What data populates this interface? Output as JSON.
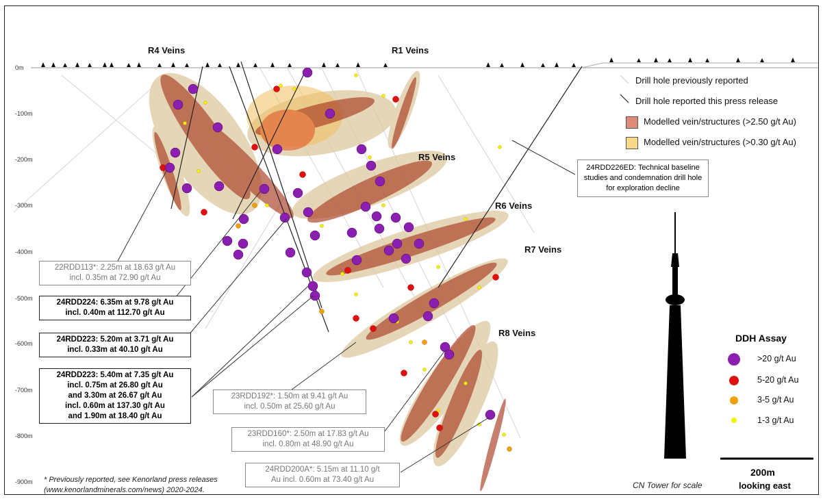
{
  "depth_labels": [
    "0m",
    "-100m",
    "-200m",
    "-300m",
    "-400m",
    "-500m",
    "-600m",
    "-700m",
    "-800m",
    "-900m"
  ],
  "veins": {
    "r4": "R4 Veins",
    "r1": "R1 Veins",
    "r5": "R5 Veins",
    "r6": "R6 Veins",
    "r7": "R7 Veins",
    "r8": "R8 Veins"
  },
  "legend": {
    "prev_hole": "Drill hole previously reported",
    "this_hole": "Drill hole reported this press release",
    "vein_high": "Modelled vein/structures (>2.50 g/t Au)",
    "vein_low": "Modelled vein/structures (>0.30 g/t Au)",
    "color_high": "#e08a7a",
    "color_low": "#f7d98a"
  },
  "callouts": {
    "c1": [
      "22RDD113*: 2.25m at 18.63 g/t Au",
      "incl. 0.35m at 72.90 g/t Au"
    ],
    "c2": [
      "24RDD224: 6.35m at 9.78 g/t Au",
      "incl. 0.40m at 112.70 g/t Au"
    ],
    "c3": [
      "24RDD223: 5.20m at 3.71 g/t Au",
      "incl. 0.33m at 40.10 g/t Au"
    ],
    "c4": [
      "24RDD223: 5.40m at 7.35 g/t Au",
      "incl. 0.75m at 26.80 g/t Au",
      "and 3.30m at 26.67 g/t Au",
      "incl. 0.60m at 137.30 g/t Au",
      "and 1.90m at 18.40 g/t Au"
    ],
    "c5": [
      "23RDD192*: 1.50m at 9.41 g/t Au",
      "incl. 0.50m at 25.60 g/t Au"
    ],
    "c6": [
      "23RDD160*: 2.50m at 17.83 g/t Au",
      "incl. 0.80m at 48.90 g/t Au"
    ],
    "c7": [
      "24RDD200A*: 5.15m at 11.10 g/t",
      "Au incl. 0.60m at 73.40 g/t Au"
    ]
  },
  "tech_box": [
    "24RDD226ED: Technical baseline",
    "studies and condemnation drill",
    "hole for exploration decline"
  ],
  "assay": {
    "title": "DDH Assay",
    "items": [
      {
        "label": ">20 g/t Au",
        "color": "#8b1fb0"
      },
      {
        "label": "5-20 g/t Au",
        "color": "#e01010"
      },
      {
        "label": "3-5 g/t Au",
        "color": "#f0a000"
      },
      {
        "label": "1-3 g/t Au",
        "color": "#f4f000"
      }
    ]
  },
  "footnote": [
    "* Previously reported, see Kenorland press releases",
    "(www.kenorlandminerals.com/news) 2020-2024."
  ],
  "cn_tower": "CN Tower for scale",
  "scale": "200m",
  "looking": "looking east"
}
